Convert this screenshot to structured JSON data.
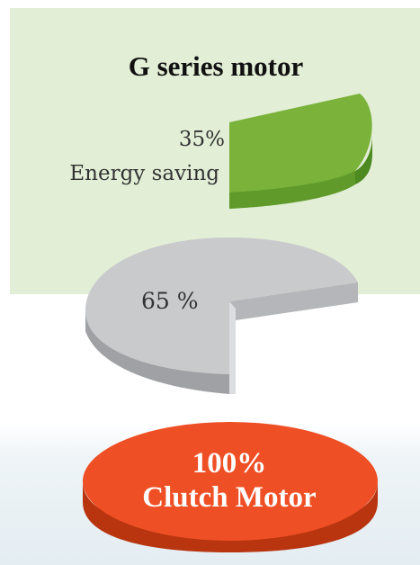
{
  "title": "G series motor",
  "chart_data": [
    {
      "type": "pie",
      "title": "G series motor",
      "slices": [
        {
          "value": 35,
          "label_pct": "35%",
          "label_text": "Energy saving",
          "color": "#7ab23a"
        },
        {
          "value": 65,
          "label_pct": "65 %",
          "color": "#c9cacc"
        }
      ]
    },
    {
      "type": "pie",
      "slices": [
        {
          "value": 100,
          "label_pct": "100%",
          "label_text": "Clutch Motor",
          "color": "#ef4f24"
        }
      ]
    }
  ],
  "colors": {
    "panel_bg": "#e2eed6",
    "green": "#7ab23a",
    "gray": "#c9cacc",
    "orange": "#ef4f24"
  }
}
